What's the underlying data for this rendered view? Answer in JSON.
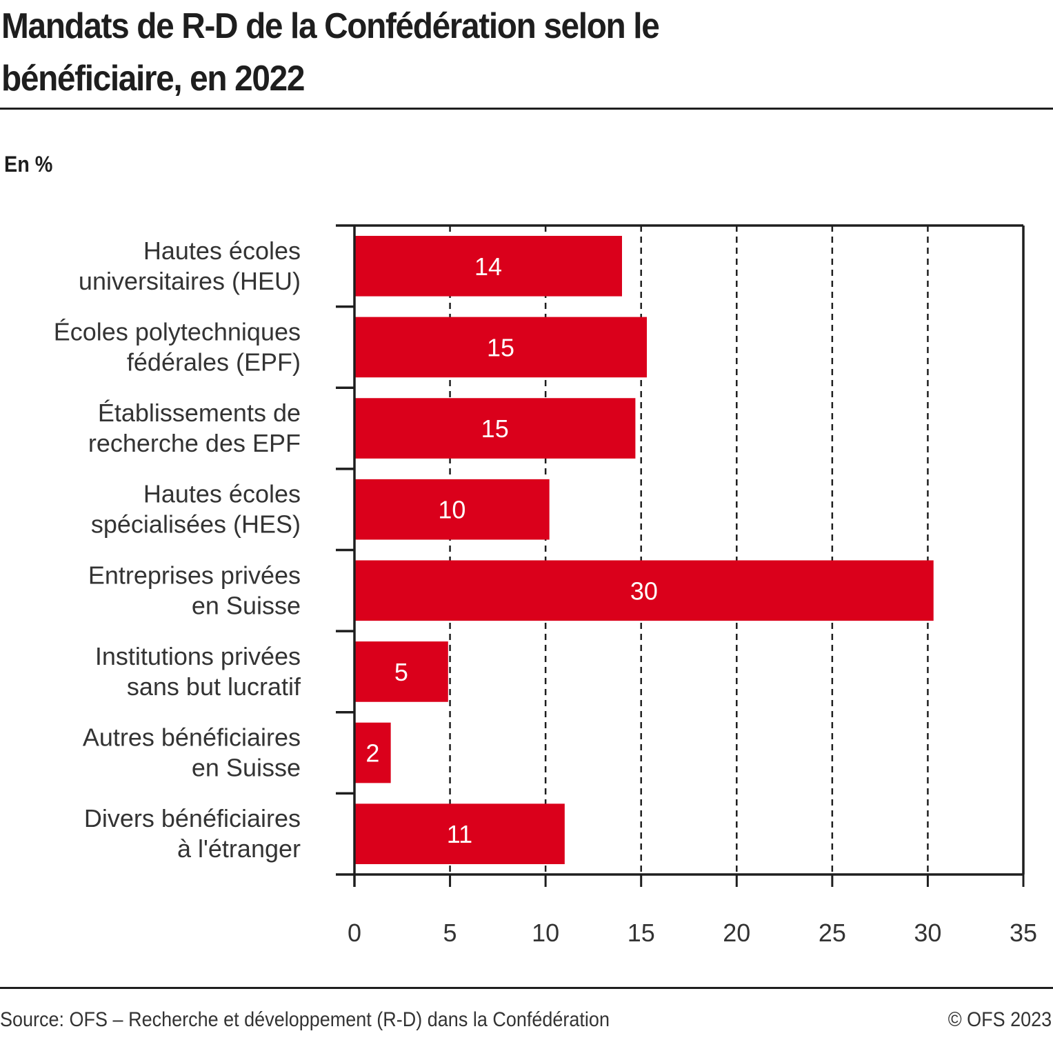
{
  "chart_data": {
    "type": "bar",
    "orientation": "horizontal",
    "title": "Mandats de R-D de la Confédération selon le bénéficiaire, en 2022",
    "unit_label": "En %",
    "xlabel": "",
    "ylabel": "",
    "xlim": [
      0,
      35
    ],
    "xticks": [
      0,
      5,
      10,
      15,
      20,
      25,
      30,
      35
    ],
    "xtick_labels": [
      "0",
      "5",
      "10",
      "15",
      "20",
      "25",
      "30",
      "35"
    ],
    "grid": "vertical dashed",
    "legend": "none",
    "bar_color": "#da001b",
    "categories": [
      [
        "Hautes écoles",
        "universitaires (HEU)"
      ],
      [
        "Écoles polytechniques",
        "fédérales (EPF)"
      ],
      [
        "Établissements de",
        "recherche des EPF"
      ],
      [
        "Hautes écoles",
        "spécialisées (HES)"
      ],
      [
        "Entreprises privées",
        "en Suisse"
      ],
      [
        "Institutions privées",
        "sans but lucratif"
      ],
      [
        "Autres bénéficiaires",
        "en Suisse"
      ],
      [
        "Divers bénéficiaires",
        "à l'étranger"
      ]
    ],
    "values": [
      14.0,
      15.3,
      14.7,
      10.2,
      30.3,
      4.9,
      1.9,
      11.0
    ],
    "data_labels": [
      "14",
      "15",
      "15",
      "10",
      "30",
      "5",
      "2",
      "11"
    ]
  },
  "header": {
    "title_line1": "Mandats de R-D de la Confédération selon le",
    "title_line2": "bénéficiaire, en 2022",
    "unit": "En %"
  },
  "footer": {
    "source": "Source: OFS – Recherche et développement (R-D) dans la Confédération",
    "copyright": "© OFS 2023"
  }
}
